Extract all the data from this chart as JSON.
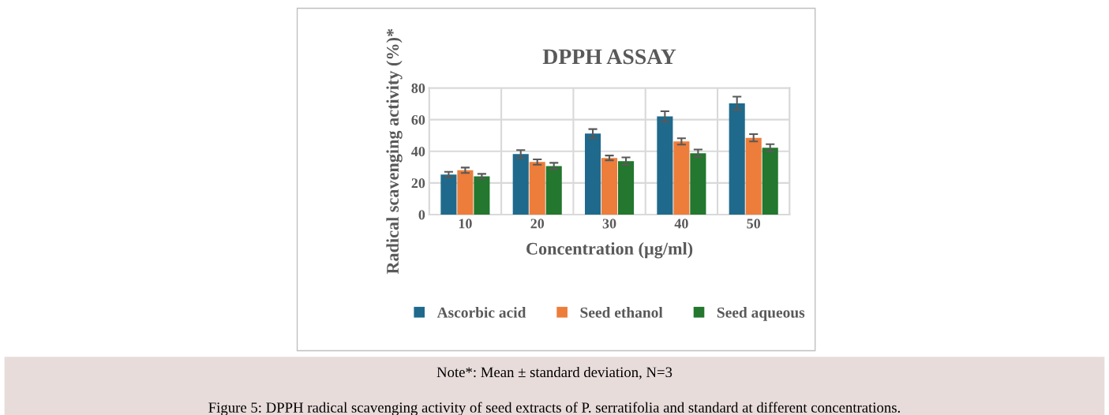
{
  "chart_data": {
    "type": "bar",
    "title": "DPPH ASSAY",
    "xlabel": "Concentration (µg/ml)",
    "ylabel": "Radical scavenging activity (%)*",
    "categories": [
      "10",
      "20",
      "30",
      "40",
      "50"
    ],
    "series": [
      {
        "name": "Ascorbic acid",
        "color": "#1f6a8c",
        "values": [
          25.3,
          38.2,
          51.2,
          62,
          70.3
        ],
        "errors": [
          1.7,
          2.5,
          2.8,
          3.3,
          4.2
        ]
      },
      {
        "name": "Seed ethanol",
        "color": "#ed7d3a",
        "values": [
          28,
          33.2,
          35.8,
          46.2,
          48.5
        ],
        "errors": [
          1.7,
          1.7,
          1.5,
          2,
          2.3
        ]
      },
      {
        "name": "Seed aqueous",
        "color": "#23772e",
        "values": [
          24.2,
          30.7,
          33.8,
          38.8,
          42.2
        ],
        "errors": [
          1.5,
          2,
          2.3,
          2.3,
          2.3
        ]
      }
    ],
    "ylim": [
      0,
      80
    ],
    "yticks": [
      0,
      20,
      40,
      60,
      80
    ],
    "grid": true,
    "legend": "bottom",
    "annotations": [
      "Note*: Mean ± standard deviation, N=3",
      "Figure 5: DPPH radical scavenging activity of seed extracts of P. serratifolia and standard at different concentrations."
    ]
  }
}
